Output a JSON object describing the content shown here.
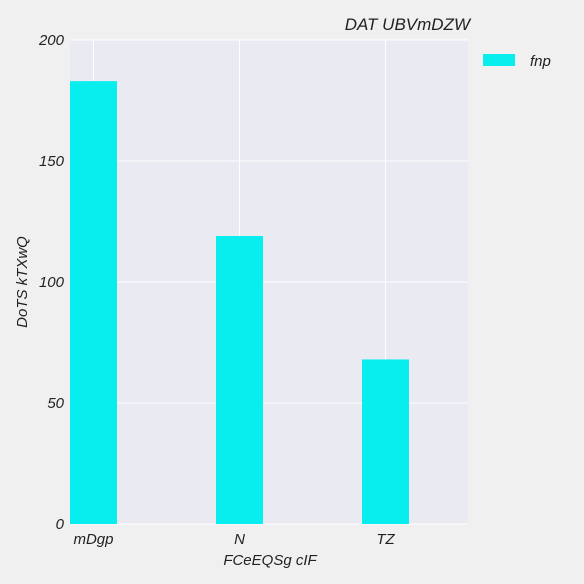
{
  "chart_data": {
    "type": "bar",
    "title": "DAT UBVmDZW",
    "xlabel": "FCeEQSg cIF",
    "ylabel": "DoTS  kTXwQ",
    "categories": [
      "mDgp",
      "N",
      "TZ"
    ],
    "series": [
      {
        "name": "fnp",
        "values": [
          183,
          119,
          68
        ]
      }
    ],
    "ylim": [
      0,
      200
    ],
    "yticks": [
      0,
      50,
      100,
      150,
      200
    ],
    "grid": true,
    "legend_position": "right-top",
    "colors": {
      "bar": "#08eeee",
      "plot_bg": "#eaeaf2",
      "figure_bg": "#f0f0f0",
      "grid": "#ffffff",
      "text": "#222222"
    }
  }
}
